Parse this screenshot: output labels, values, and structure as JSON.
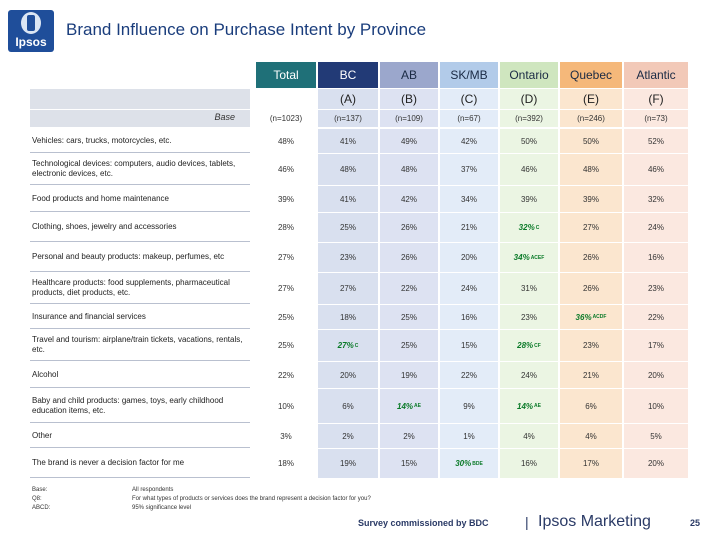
{
  "logo": {
    "text": "Ipsos"
  },
  "title": "Brand Influence on Purchase Intent by Province",
  "columns": [
    {
      "name": "Total",
      "letter": "",
      "base": "(n=1023)",
      "header_color": "#1f7078",
      "cell_color": "#ffffff"
    },
    {
      "name": "BC",
      "letter": "(A)",
      "base": "(n=137)",
      "header_color": "#223a76",
      "cell_color": "#d9e0ef"
    },
    {
      "name": "AB",
      "letter": "(B)",
      "base": "(n=109)",
      "header_color": "#9ba7cc",
      "cell_color": "#dde2f2"
    },
    {
      "name": "SK/MB",
      "letter": "(C)",
      "base": "(n=67)",
      "header_color": "#b2cbe9",
      "cell_color": "#e3ecf8"
    },
    {
      "name": "Ontario",
      "letter": "(D)",
      "base": "(n=392)",
      "header_color": "#cfe6bf",
      "cell_color": "#ebf5e3"
    },
    {
      "name": "Quebec",
      "letter": "(E)",
      "base": "(n=246)",
      "header_color": "#f5b87a",
      "cell_color": "#fbe6cf"
    },
    {
      "name": "Atlantic",
      "letter": "(F)",
      "base": "(n=73)",
      "header_color": "#f2c9b8",
      "cell_color": "#fbe8e0"
    }
  ],
  "base_label": "Base",
  "rows": [
    {
      "label": "Vehicles: cars, trucks, motorcycles, etc.",
      "values": [
        "48%",
        "41%",
        "49%",
        "42%",
        "50%",
        "50%",
        "52%"
      ],
      "sig": [
        "",
        "",
        "",
        "",
        "",
        "",
        ""
      ]
    },
    {
      "label": "Technological devices: computers, audio devices, tablets, electronic devices, etc.",
      "values": [
        "46%",
        "48%",
        "48%",
        "37%",
        "46%",
        "48%",
        "46%"
      ],
      "sig": [
        "",
        "",
        "",
        "",
        "",
        "",
        ""
      ]
    },
    {
      "label": "Food products and home maintenance",
      "values": [
        "39%",
        "41%",
        "42%",
        "34%",
        "39%",
        "39%",
        "32%"
      ],
      "sig": [
        "",
        "",
        "",
        "",
        "",
        "",
        ""
      ]
    },
    {
      "label": "Clothing, shoes, jewelry and accessories",
      "values": [
        "28%",
        "25%",
        "26%",
        "21%",
        "32%",
        "27%",
        "24%"
      ],
      "sig": [
        "",
        "",
        "",
        "",
        "C",
        "",
        ""
      ]
    },
    {
      "label": "Personal and beauty products: makeup, perfumes, etc",
      "values": [
        "27%",
        "23%",
        "26%",
        "20%",
        "34%",
        "26%",
        "16%"
      ],
      "sig": [
        "",
        "",
        "",
        "",
        "ACEF",
        "",
        ""
      ]
    },
    {
      "label": "Healthcare products: food supplements, pharmaceutical products, diet products, etc.",
      "values": [
        "27%",
        "27%",
        "22%",
        "24%",
        "31%",
        "26%",
        "23%"
      ],
      "sig": [
        "",
        "",
        "",
        "",
        "",
        "",
        ""
      ]
    },
    {
      "label": "Insurance and financial services",
      "values": [
        "25%",
        "18%",
        "25%",
        "16%",
        "23%",
        "36%",
        "22%"
      ],
      "sig": [
        "",
        "",
        "",
        "",
        "",
        "ACDF",
        ""
      ]
    },
    {
      "label": "Travel and tourism: airplane/train tickets, vacations, rentals, etc.",
      "values": [
        "25%",
        "27%",
        "25%",
        "15%",
        "28%",
        "23%",
        "17%"
      ],
      "sig": [
        "",
        "C",
        "",
        "",
        "CF",
        "",
        ""
      ]
    },
    {
      "label": "Alcohol",
      "values": [
        "22%",
        "20%",
        "19%",
        "22%",
        "24%",
        "21%",
        "20%"
      ],
      "sig": [
        "",
        "",
        "",
        "",
        "",
        "",
        ""
      ]
    },
    {
      "label": "Baby and child products: games, toys, early childhood education items, etc.",
      "values": [
        "10%",
        "6%",
        "14%",
        "9%",
        "14%",
        "6%",
        "10%"
      ],
      "sig": [
        "",
        "",
        "AE",
        "",
        "AE",
        "",
        ""
      ]
    },
    {
      "label": "Other",
      "values": [
        "3%",
        "2%",
        "2%",
        "1%",
        "4%",
        "4%",
        "5%"
      ],
      "sig": [
        "",
        "",
        "",
        "",
        "",
        "",
        ""
      ]
    },
    {
      "label": "The brand is never a decision factor for me",
      "values": [
        "18%",
        "19%",
        "15%",
        "30%",
        "16%",
        "17%",
        "20%"
      ],
      "sig": [
        "",
        "",
        "",
        "BDE",
        "",
        "",
        ""
      ]
    }
  ],
  "footnote": {
    "keys": [
      "Base:",
      "Q8:",
      "ABCD:"
    ],
    "values": [
      "All respondents",
      "For what types of products or services does the brand represent a decision factor for you?",
      "95% significance level"
    ]
  },
  "footer": {
    "survey": "Survey commissioned by BDC",
    "separator": "|",
    "brand": "Ipsos Marketing",
    "page": "25"
  }
}
